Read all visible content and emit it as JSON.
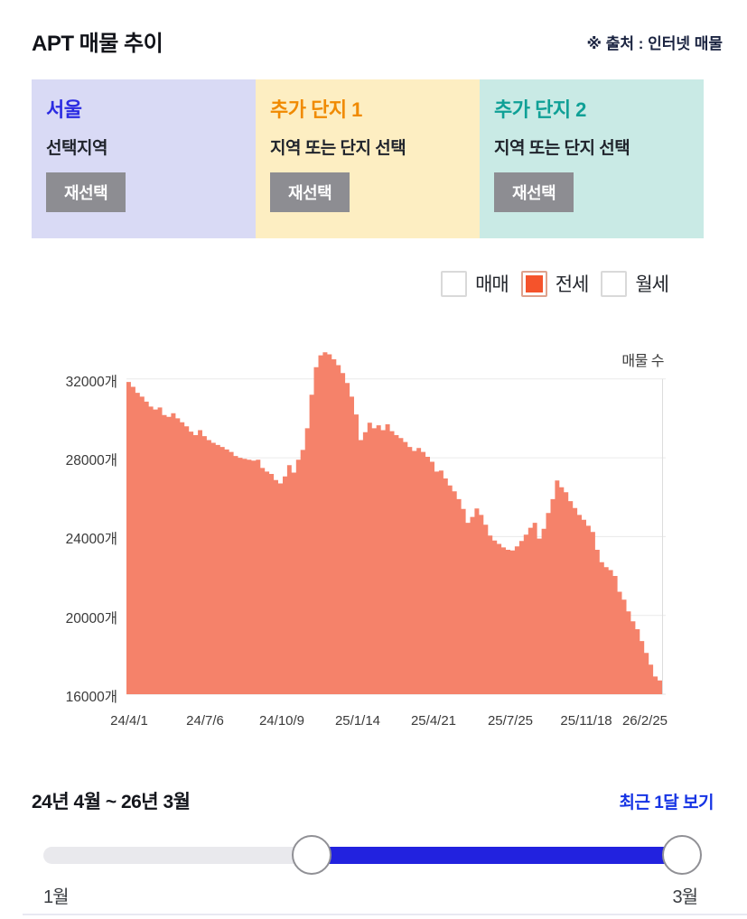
{
  "header": {
    "title": "APT 매물 추이",
    "source_note": "※ 출처 : 인터넷 매물"
  },
  "cards": [
    {
      "title": "서울",
      "subtitle": "선택지역",
      "button_label": "재선택",
      "bg": "#d9daf5",
      "title_color": "#2b2be2"
    },
    {
      "title": "추가 단지 1",
      "subtitle": "지역 또는 단지 선택",
      "button_label": "재선택",
      "bg": "#fdeec2",
      "title_color": "#f08a00"
    },
    {
      "title": "추가 단지 2",
      "subtitle": "지역 또는 단지 선택",
      "button_label": "재선택",
      "bg": "#c9eae5",
      "title_color": "#0fa096"
    }
  ],
  "legend": {
    "items": [
      {
        "label": "매매",
        "checked": false
      },
      {
        "label": "전세",
        "checked": true
      },
      {
        "label": "월세",
        "checked": false
      }
    ],
    "checked_color": "#f5532b"
  },
  "chart_data": {
    "type": "area",
    "title": "매물 수",
    "series_name": "전세",
    "unit": "개",
    "color": "#f5826a",
    "grid": true,
    "ylim": [
      16000,
      33500
    ],
    "y_gridlines": [
      32000,
      28000,
      24000,
      20000,
      16000
    ],
    "y_tick_labels": [
      "32000개",
      "28000개",
      "24000개",
      "20000개",
      "16000개"
    ],
    "x_tick_labels": [
      "24/4/1",
      "24/7/6",
      "24/10/9",
      "25/1/14",
      "25/4/21",
      "25/7/25",
      "25/11/18",
      "26/2/25"
    ],
    "values": [
      31850,
      31600,
      31300,
      31100,
      30850,
      30600,
      30450,
      30550,
      30170,
      30080,
      30260,
      30000,
      29800,
      29600,
      29330,
      29150,
      29400,
      29100,
      28900,
      28760,
      28650,
      28550,
      28420,
      28300,
      28090,
      28000,
      27950,
      27900,
      27860,
      27900,
      27480,
      27300,
      27180,
      26870,
      26700,
      27050,
      27630,
      27250,
      27900,
      28400,
      29500,
      31200,
      32600,
      33200,
      33350,
      33250,
      33000,
      32700,
      32300,
      31800,
      31100,
      30200,
      28900,
      29300,
      29780,
      29500,
      29650,
      29400,
      29700,
      29350,
      29150,
      29000,
      28800,
      28550,
      28350,
      28500,
      28300,
      28050,
      27800,
      27300,
      27350,
      26950,
      26600,
      26300,
      25900,
      25400,
      24700,
      25000,
      25430,
      25100,
      24600,
      24050,
      23800,
      23630,
      23450,
      23330,
      23300,
      23500,
      23780,
      24100,
      24450,
      24700,
      23900,
      24400,
      25200,
      25900,
      26850,
      26500,
      26250,
      25800,
      25450,
      25100,
      24850,
      24550,
      24240,
      23330,
      22700,
      22450,
      22300,
      22000,
      21200,
      20800,
      20200,
      19700,
      19300,
      18700,
      18100,
      17500,
      16900,
      16700
    ]
  },
  "footer": {
    "range_label": "24년 4월 ~ 26년 3월",
    "recent_button": "최근 1달 보기",
    "slider": {
      "min_label": "1월",
      "max_label": "3월",
      "handle_positions_pct": [
        41.7,
        99.3
      ],
      "active_color": "#2222df"
    }
  }
}
